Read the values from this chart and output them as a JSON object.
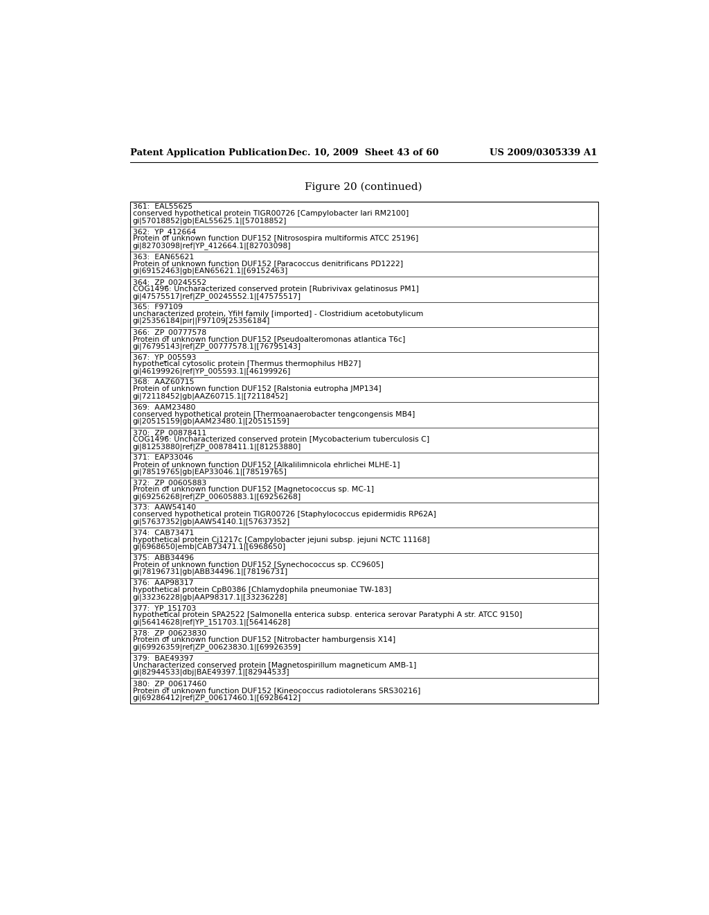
{
  "header_left": "Patent Application Publication",
  "header_mid": "Dec. 10, 2009  Sheet 43 of 60",
  "header_right": "US 2009/0305339 A1",
  "figure_title": "Figure 20 (continued)",
  "entries": [
    {
      "num": "361:  EAL55625",
      "line2": "conserved hypothetical protein TIGR00726 [Campylobacter lari RM2100]",
      "line3": "gi|57018852|gb|EAL55625.1|[57018852]"
    },
    {
      "num": "362:  YP_412664",
      "line2": "Protein of unknown function DUF152 [Nitrosospira multiformis ATCC 25196]",
      "line3": "gi|82703098|ref|YP_412664.1|[82703098]"
    },
    {
      "num": "363:  EAN65621",
      "line2": "Protein of unknown function DUF152 [Paracoccus denitrificans PD1222]",
      "line3": "gi|69152463|gb|EAN65621.1|[69152463]"
    },
    {
      "num": "364:  ZP_00245552",
      "line2": "COG1496: Uncharacterized conserved protein [Rubrivivax gelatinosus PM1]",
      "line3": "gi|47575517|ref|ZP_00245552.1|[47575517]"
    },
    {
      "num": "365:  F97109",
      "line2": "uncharacterized protein, YfiH family [imported] - Clostridium acetobutylicum",
      "line3": "gi|25356184|pir||F97109[25356184]"
    },
    {
      "num": "366:  ZP_00777578",
      "line2": "Protein of unknown function DUF152 [Pseudoalteromonas atlantica T6c]",
      "line3": "gi|76795143|ref|ZP_00777578.1|[76795143]"
    },
    {
      "num": "367:  YP_005593",
      "line2": "hypothetical cytosolic protein [Thermus thermophilus HB27]",
      "line3": "gi|46199926|ref|YP_005593.1|[46199926]"
    },
    {
      "num": "368:  AAZ60715",
      "line2": "Protein of unknown function DUF152 [Ralstonia eutropha JMP134]",
      "line3": "gi|72118452|gb|AAZ60715.1|[72118452]"
    },
    {
      "num": "369:  AAM23480",
      "line2": "conserved hypothetical protein [Thermoanaerobacter tengcongensis MB4]",
      "line3": "gi|20515159|gb|AAM23480.1|[20515159]"
    },
    {
      "num": "370:  ZP_00878411",
      "line2": "COG1496: Uncharacterized conserved protein [Mycobacterium tuberculosis C]",
      "line3": "gi|81253880|ref|ZP_00878411.1|[81253880]"
    },
    {
      "num": "371:  EAP33046",
      "line2": "Protein of unknown function DUF152 [Alkalilimnicola ehrlichei MLHE-1]",
      "line3": "gi|78519765|gb|EAP33046.1|[78519765]"
    },
    {
      "num": "372:  ZP_00605883",
      "line2": "Protein of unknown function DUF152 [Magnetococcus sp. MC-1]",
      "line3": "gi|69256268|ref|ZP_00605883.1|[69256268]"
    },
    {
      "num": "373:  AAW54140",
      "line2": "conserved hypothetical protein TIGR00726 [Staphylococcus epidermidis RP62A]",
      "line3": "gi|57637352|gb|AAW54140.1|[57637352]"
    },
    {
      "num": "374:  CAB73471",
      "line2": "hypothetical protein Cj1217c [Campylobacter jejuni subsp. jejuni NCTC 11168]",
      "line3": "gi|6968650|emb|CAB73471.1|[6968650]"
    },
    {
      "num": "375:  ABB34496",
      "line2": "Protein of unknown function DUF152 [Synechococcus sp. CC9605]",
      "line3": "gi|78196731|gb|ABB34496.1|[78196731]"
    },
    {
      "num": "376:  AAP98317",
      "line2": "hypothetical protein CpB0386 [Chlamydophila pneumoniae TW-183]",
      "line3": "gi|33236228|gb|AAP98317.1|[33236228]"
    },
    {
      "num": "377:  YP_151703",
      "line2": "hypothetical protein SPA2522 [Salmonella enterica subsp. enterica serovar Paratyphi A str. ATCC 9150]",
      "line3": "gi|56414628|ref|YP_151703.1|[56414628]"
    },
    {
      "num": "378:  ZP_00623830",
      "line2": "Protein of unknown function DUF152 [Nitrobacter hamburgensis X14]",
      "line3": "gi|69926359|ref|ZP_00623830.1|[69926359]"
    },
    {
      "num": "379:  BAE49397",
      "line2": "Uncharacterized conserved protein [Magnetospirillum magneticum AMB-1]",
      "line3": "gi|82944533|dbj|BAE49397.1|[82944533]"
    },
    {
      "num": "380:  ZP_00617460",
      "line2": "Protein of unknown function DUF152 [Kineococcus radiotolerans SRS30216]",
      "line3": "gi|69286412|ref|ZP_00617460.1|[69286412]"
    }
  ],
  "bg_color": "#ffffff",
  "text_color": "#000000",
  "border_color": "#000000",
  "header_font_size": 9.5,
  "title_font_size": 11,
  "entry_font_size": 7.8
}
